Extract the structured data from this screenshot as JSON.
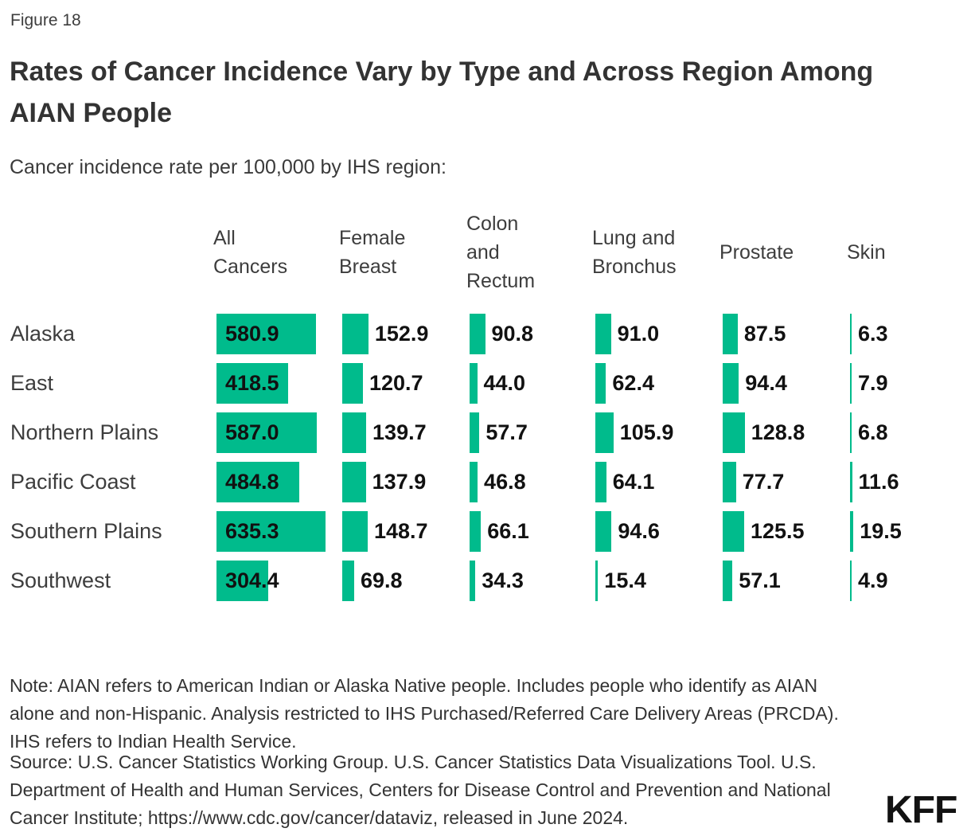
{
  "figure_label": "Figure 18",
  "title": "Rates of Cancer Incidence Vary by Type and Across Region Among AIAN People",
  "subtitle": "Cancer incidence rate per 100,000 by IHS region:",
  "note": "Note: AIAN refers to American Indian or Alaska Native people. Includes people who identify as AIAN alone and non-Hispanic. Analysis restricted to IHS Purchased/Referred Care Delivery Areas (PRCDA). IHS refers to Indian Health Service.",
  "source": "Source: U.S. Cancer Statistics Working Group. U.S. Cancer Statistics Data Visualizations Tool. U.S. Department of Health and Human Services, Centers for Disease Control and Prevention and National Cancer Institute; https://www.cdc.gov/cancer/dataviz, released in June 2024.",
  "logo_text": "KFF",
  "colors": {
    "bar_green": "#00BB8C",
    "title_text": "#333333",
    "value_text": "#111111"
  },
  "chart_data": {
    "type": "bar",
    "orientation": "horizontal",
    "title": "Rates of Cancer Incidence Vary by Type and Across Region Among AIAN People",
    "unit": "Cancer incidence rate per 100,000 by IHS region",
    "grid": false,
    "legend": false,
    "value_labels_shown": true,
    "categories": [
      "Alaska",
      "East",
      "Northern Plains",
      "Pacific Coast",
      "Southern Plains",
      "Southwest"
    ],
    "series": [
      {
        "name": "All Cancers",
        "header_lines": [
          "All",
          "Cancers"
        ],
        "values": [
          580.9,
          418.5,
          587.0,
          484.8,
          635.3,
          304.4
        ],
        "labels": [
          "580.9",
          "418.5",
          "587.0",
          "484.8",
          "635.3",
          "304.4"
        ]
      },
      {
        "name": "Female Breast",
        "header_lines": [
          "Female",
          "Breast"
        ],
        "values": [
          152.9,
          120.7,
          139.7,
          137.9,
          148.7,
          69.8
        ],
        "labels": [
          "152.9",
          "120.7",
          "139.7",
          "137.9",
          "148.7",
          "69.8"
        ]
      },
      {
        "name": "Colon and Rectum",
        "header_lines": [
          "Colon",
          "and",
          "Rectum"
        ],
        "values": [
          90.8,
          44.0,
          57.7,
          46.8,
          66.1,
          34.3
        ],
        "labels": [
          "90.8",
          "44.0",
          "57.7",
          "46.8",
          "66.1",
          "34.3"
        ]
      },
      {
        "name": "Lung and Bronchus",
        "header_lines": [
          "Lung and",
          "Bronchus"
        ],
        "values": [
          91.0,
          62.4,
          105.9,
          64.1,
          94.6,
          15.4
        ],
        "labels": [
          "91.0",
          "62.4",
          "105.9",
          "64.1",
          "94.6",
          "15.4"
        ]
      },
      {
        "name": "Prostate",
        "header_lines": [
          "Prostate"
        ],
        "values": [
          87.5,
          94.4,
          128.8,
          77.7,
          125.5,
          57.1
        ],
        "labels": [
          "87.5",
          "94.4",
          "128.8",
          "77.7",
          "125.5",
          "57.1"
        ]
      },
      {
        "name": "Skin",
        "header_lines": [
          "Skin"
        ],
        "values": [
          6.3,
          7.9,
          6.8,
          11.6,
          19.5,
          4.9
        ],
        "labels": [
          "6.3",
          "7.9",
          "6.8",
          "11.6",
          "19.5",
          "4.9"
        ]
      }
    ]
  }
}
